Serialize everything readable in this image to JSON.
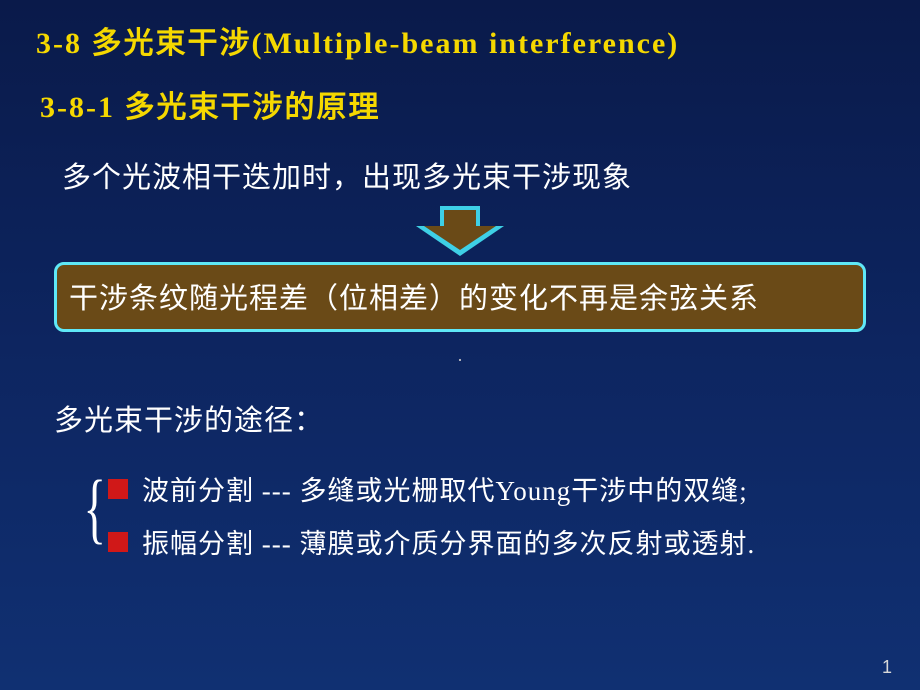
{
  "colors": {
    "heading_yellow": "#f5d800",
    "text_white": "#ffffff",
    "boxed_bg": "#6a4a17",
    "boxed_border": "#5fe8f7",
    "arrow_border": "#3ed0e6",
    "arrow_fill": "#6a4a17",
    "bullet_red": "#d01818",
    "bg_top": "#0a1a4a",
    "bg_bottom": "#103072",
    "page_num_color": "#d8d8d8"
  },
  "heading_main": "3-8 多光束干涉(Multiple-beam interference)",
  "heading_sub": "3-8-1 多光束干涉的原理",
  "intro_text": "多个光波相干迭加时，出现多光束干涉现象",
  "boxed_text": "干涉条纹随光程差（位相差）的变化不再是余弦关系",
  "paths_heading": "多光束干涉的途径：",
  "items": [
    "波前分割 --- 多缝或光栅取代Young干涉中的双缝;",
    "振幅分割 --- 薄膜或介质分界面的多次反射或透射."
  ],
  "page_number": "1"
}
